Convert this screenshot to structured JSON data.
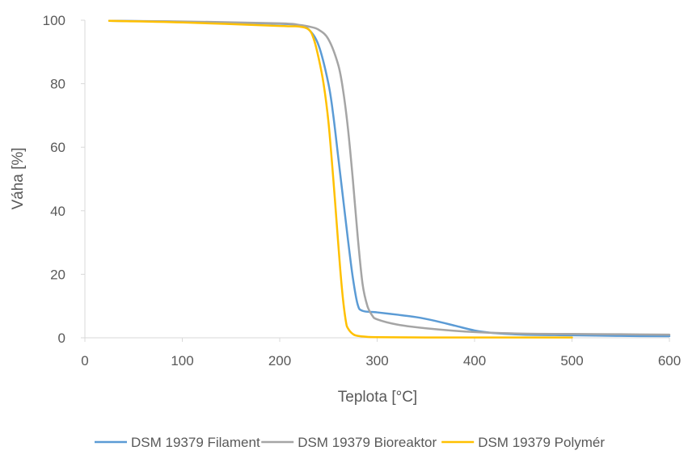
{
  "chart_data": {
    "type": "line",
    "title": "",
    "xlabel": "Teplota [°C]",
    "ylabel": "Váha [%]",
    "xlim": [
      0,
      600
    ],
    "ylim": [
      0,
      100
    ],
    "xticks": [
      0,
      100,
      200,
      300,
      400,
      500,
      600
    ],
    "yticks": [
      0,
      20,
      40,
      60,
      80,
      100
    ],
    "grid": false,
    "legend_position": "bottom",
    "series": [
      {
        "name": "DSM 19379 Filament",
        "color": "#5B9BD5",
        "x": [
          25,
          100,
          200,
          220,
          230,
          240,
          250,
          255,
          260,
          265,
          270,
          275,
          280,
          285,
          300,
          320,
          340,
          360,
          380,
          400,
          420,
          450,
          500,
          550,
          600
        ],
        "y": [
          99.8,
          99.5,
          98.9,
          98.3,
          97.0,
          92.0,
          80.0,
          70.0,
          57.0,
          44.0,
          31.0,
          19.0,
          10.5,
          8.5,
          8.0,
          7.3,
          6.5,
          5.3,
          3.8,
          2.3,
          1.5,
          1.0,
          0.8,
          0.6,
          0.5
        ]
      },
      {
        "name": "DSM 19379 Bioreaktor",
        "color": "#A5A5A5",
        "x": [
          25,
          100,
          200,
          220,
          230,
          240,
          250,
          260,
          265,
          270,
          275,
          280,
          285,
          290,
          295,
          300,
          320,
          350,
          400,
          450,
          500,
          550,
          600
        ],
        "y": [
          99.8,
          99.6,
          99.0,
          98.5,
          98.0,
          97.0,
          94.0,
          86.0,
          78.0,
          66.0,
          50.0,
          32.0,
          17.0,
          10.0,
          7.0,
          5.8,
          4.2,
          3.0,
          1.8,
          1.3,
          1.2,
          1.1,
          1.0
        ]
      },
      {
        "name": "DSM 19379 Polymér",
        "color": "#FFC000",
        "x": [
          25,
          100,
          200,
          220,
          230,
          235,
          240,
          245,
          250,
          255,
          258,
          262,
          265,
          268,
          270,
          275,
          280,
          290,
          300,
          350,
          400,
          450,
          500
        ],
        "y": [
          99.8,
          99.3,
          98.2,
          98.0,
          97.0,
          94.0,
          88.0,
          80.0,
          68.0,
          50.0,
          38.0,
          22.0,
          12.0,
          5.0,
          3.0,
          1.2,
          0.6,
          0.3,
          0.2,
          0.1,
          0.1,
          0.1,
          0.1
        ]
      }
    ]
  }
}
